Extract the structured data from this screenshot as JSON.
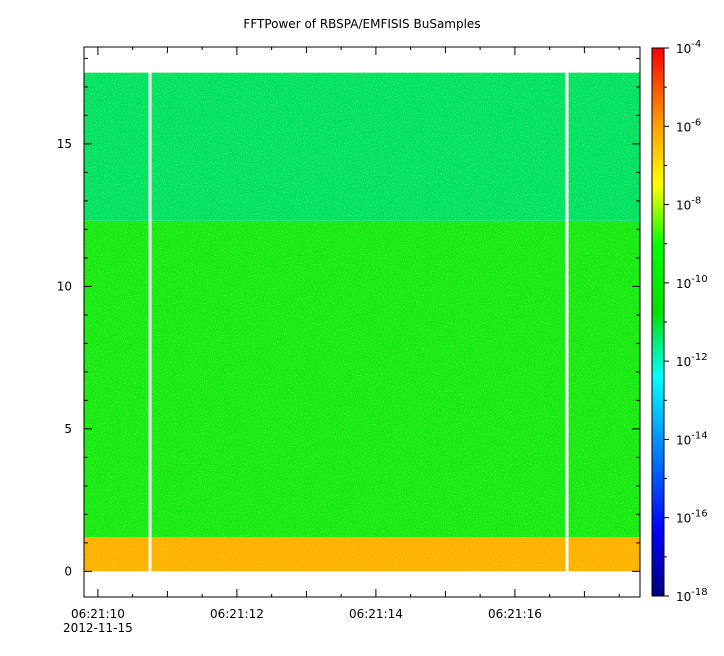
{
  "chart_data": {
    "type": "heatmap",
    "title": "FFTPower of RBSPA/EMFISIS  BuSamples",
    "xlabel": "",
    "ylabel": "",
    "x_tick_labels": [
      "06:21:10",
      "06:21:12",
      "06:21:14",
      "06:21:16"
    ],
    "x_tick_sublabel": "2012-11-15",
    "x_range_seconds": [
      9.8,
      17.8
    ],
    "y_ticks": [
      0,
      5,
      10,
      15
    ],
    "y_range": [
      -0.9,
      18.4
    ],
    "colorbar": {
      "scale": "log",
      "tick_base": "10",
      "tick_exponents": [
        "-4",
        "-6",
        "-8",
        "-10",
        "-12",
        "-14",
        "-16",
        "-18"
      ],
      "range": [
        1e-18,
        0.0001
      ]
    },
    "bands": [
      {
        "y_range": [
          0.0,
          1.2
        ],
        "approx_power": 3e-07,
        "description_color": "orange-red"
      },
      {
        "y_range": [
          1.2,
          12.3
        ],
        "approx_power": 1e-10,
        "description_color": "green"
      },
      {
        "y_range": [
          12.3,
          17.5
        ],
        "approx_power": 3e-12,
        "description_color": "teal-green"
      }
    ],
    "data_gaps_seconds": [
      10.75,
      16.75
    ],
    "grid": false
  }
}
